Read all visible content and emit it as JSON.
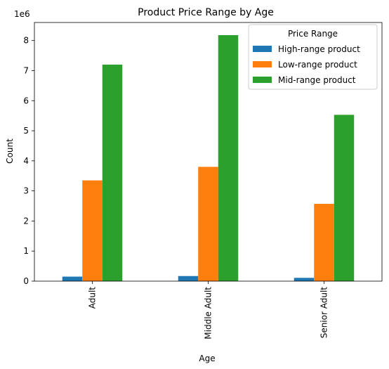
{
  "chart_data": {
    "type": "bar",
    "title": "Product Price Range by Age",
    "xlabel": "Age",
    "ylabel": "Count",
    "y_scale_label": "1e6",
    "y_multiplier": 1000000,
    "categories": [
      "Adult",
      "Middle Adult",
      "Senior Adult"
    ],
    "series": [
      {
        "name": "High-range product",
        "color": "#1f77b4",
        "values": [
          150000,
          170000,
          110000
        ]
      },
      {
        "name": "Low-range product",
        "color": "#ff7f0e",
        "values": [
          3350000,
          3800000,
          2570000
        ]
      },
      {
        "name": "Mid-range product",
        "color": "#2ca02c",
        "values": [
          7200000,
          8180000,
          5530000
        ]
      }
    ],
    "y_ticks": [
      0,
      1,
      2,
      3,
      4,
      5,
      6,
      7,
      8
    ],
    "ylim": [
      0,
      8600000
    ],
    "legend": {
      "title": "Price Range",
      "position": "top-right"
    },
    "grid": false
  }
}
